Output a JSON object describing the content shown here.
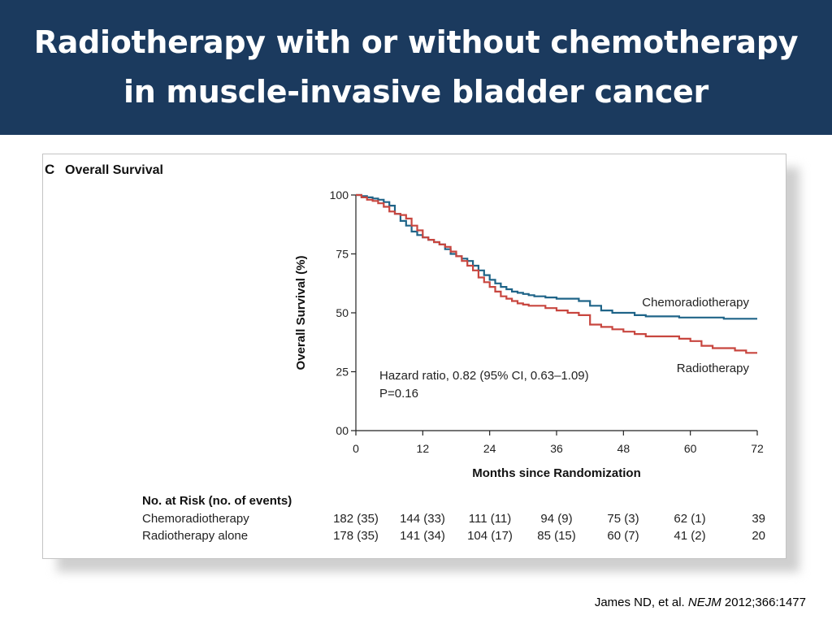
{
  "slide": {
    "title_line1": "Radiotherapy with or without chemotherapy",
    "title_line2": "in muscle-invasive bladder cancer",
    "citation": {
      "authors": "James ND, et al. ",
      "journal": "NEJM",
      "ref": " 2012;366:1477"
    }
  },
  "colors": {
    "header_bg": "#1b3a5e",
    "chemoradiotherapy": "#1f6488",
    "radiotherapy": "#c8463f"
  },
  "chart_data": {
    "type": "line",
    "panel_letter": "C",
    "title": "Overall Survival",
    "xlabel": "Months since Randomization",
    "ylabel": "Overall Survival (%)",
    "xlim": [
      0,
      72
    ],
    "ylim": [
      0,
      100
    ],
    "xticks": [
      0,
      12,
      24,
      36,
      48,
      60,
      72
    ],
    "yticks": [
      0,
      25,
      50,
      75,
      100
    ],
    "ytick_labels": [
      "00",
      "25",
      "50",
      "75",
      "100"
    ],
    "grid": false,
    "step": true,
    "series": [
      {
        "name": "Chemoradiotherapy",
        "color": "#1f6488",
        "points": [
          [
            0,
            100
          ],
          [
            1,
            99.5
          ],
          [
            2,
            99
          ],
          [
            3,
            98.5
          ],
          [
            4,
            98
          ],
          [
            5,
            97
          ],
          [
            6,
            95.5
          ],
          [
            7,
            92
          ],
          [
            8,
            89
          ],
          [
            9,
            87
          ],
          [
            10,
            84.5
          ],
          [
            11,
            83
          ],
          [
            12,
            82
          ],
          [
            13,
            81
          ],
          [
            14,
            80
          ],
          [
            15,
            79
          ],
          [
            16,
            77
          ],
          [
            17,
            75
          ],
          [
            18,
            74
          ],
          [
            19,
            73
          ],
          [
            20,
            72
          ],
          [
            21,
            70
          ],
          [
            22,
            68
          ],
          [
            23,
            66
          ],
          [
            24,
            64
          ],
          [
            25,
            62.5
          ],
          [
            26,
            61
          ],
          [
            27,
            60
          ],
          [
            28,
            59
          ],
          [
            29,
            58.5
          ],
          [
            30,
            58
          ],
          [
            31,
            57.5
          ],
          [
            32,
            57
          ],
          [
            34,
            56.5
          ],
          [
            36,
            56
          ],
          [
            38,
            56
          ],
          [
            40,
            55
          ],
          [
            42,
            53
          ],
          [
            44,
            51
          ],
          [
            46,
            50
          ],
          [
            48,
            50
          ],
          [
            50,
            49
          ],
          [
            52,
            48.5
          ],
          [
            56,
            48.5
          ],
          [
            58,
            48
          ],
          [
            62,
            48
          ],
          [
            66,
            47.5
          ],
          [
            72,
            47.5
          ]
        ]
      },
      {
        "name": "Radiotherapy",
        "color": "#c8463f",
        "points": [
          [
            0,
            100
          ],
          [
            1,
            99
          ],
          [
            2,
            98
          ],
          [
            3,
            97.5
          ],
          [
            4,
            96.5
          ],
          [
            5,
            95
          ],
          [
            6,
            93
          ],
          [
            7,
            92
          ],
          [
            8,
            91.5
          ],
          [
            9,
            90
          ],
          [
            10,
            87
          ],
          [
            11,
            85
          ],
          [
            12,
            82
          ],
          [
            13,
            81
          ],
          [
            14,
            80
          ],
          [
            15,
            79
          ],
          [
            16,
            78
          ],
          [
            17,
            76
          ],
          [
            18,
            74
          ],
          [
            19,
            72
          ],
          [
            20,
            70
          ],
          [
            21,
            68
          ],
          [
            22,
            65
          ],
          [
            23,
            63
          ],
          [
            24,
            61
          ],
          [
            25,
            59
          ],
          [
            26,
            57
          ],
          [
            27,
            56
          ],
          [
            28,
            55
          ],
          [
            29,
            54
          ],
          [
            30,
            53.5
          ],
          [
            31,
            53
          ],
          [
            32,
            53
          ],
          [
            34,
            52
          ],
          [
            36,
            51
          ],
          [
            38,
            50
          ],
          [
            40,
            49
          ],
          [
            42,
            45
          ],
          [
            44,
            44
          ],
          [
            46,
            43
          ],
          [
            48,
            42
          ],
          [
            50,
            41
          ],
          [
            52,
            40
          ],
          [
            56,
            40
          ],
          [
            58,
            39
          ],
          [
            60,
            38
          ],
          [
            62,
            36
          ],
          [
            64,
            35
          ],
          [
            66,
            35
          ],
          [
            68,
            34
          ],
          [
            70,
            33
          ],
          [
            72,
            33
          ]
        ]
      }
    ],
    "series_labels": [
      "Chemoradiotherapy",
      "Radiotherapy"
    ],
    "annotations": [
      "Hazard ratio, 0.82 (95% CI, 0.63–1.09)",
      "P=0.16"
    ],
    "at_risk": {
      "header": "No. at Risk (no. of events)",
      "rows": [
        {
          "label": "Chemoradiotherapy",
          "values": [
            "182 (35)",
            "144 (33)",
            "111 (11)",
            "94 (9)",
            "75 (3)",
            "62 (1)",
            "39"
          ]
        },
        {
          "label": "Radiotherapy alone",
          "values": [
            "178 (35)",
            "141 (34)",
            "104 (17)",
            "85 (15)",
            "60 (7)",
            "41 (2)",
            "20"
          ]
        }
      ]
    }
  }
}
